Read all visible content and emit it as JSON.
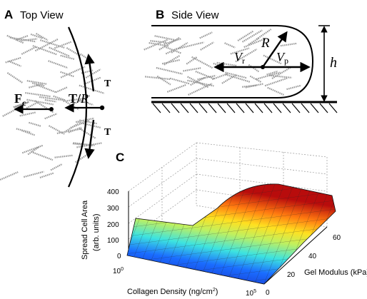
{
  "panels": {
    "a": {
      "letter": "A",
      "title": "Top View",
      "label_fc": "F",
      "label_fc_sub": "c",
      "label_t_over_r": "T/",
      "label_t_over_r_r": "R",
      "label_t_top": "T",
      "label_t_bottom": "T"
    },
    "b": {
      "letter": "B",
      "title": "Side View",
      "label_r": "R",
      "label_vr": "V",
      "label_vr_sub": "r",
      "label_vp": "V",
      "label_vp_sub": "p",
      "label_h": "h"
    },
    "c": {
      "letter": "C",
      "ylabel_line1": "Spread Cell Area",
      "ylabel_line2": "(arb. units)",
      "xlabel": "Collagen Density (ng/cm",
      "xlabel_sup": "2",
      "xlabel_close": ")",
      "zlabel": "Gel Modulus (kPa)",
      "y_ticks": [
        "400",
        "300",
        "200",
        "100",
        "0"
      ],
      "x_tick_left_base": "10",
      "x_tick_left_exp": "0",
      "x_tick_right_base": "10",
      "x_tick_right_exp": "5",
      "depth_ticks": [
        "0",
        "20",
        "40",
        "60"
      ]
    }
  },
  "colors": {
    "surface_low": "#1010a8",
    "surface_mid": "#40e0d0",
    "surface_high": "#c81010",
    "ink": "#000000",
    "fiber": "#9a9a9a"
  }
}
